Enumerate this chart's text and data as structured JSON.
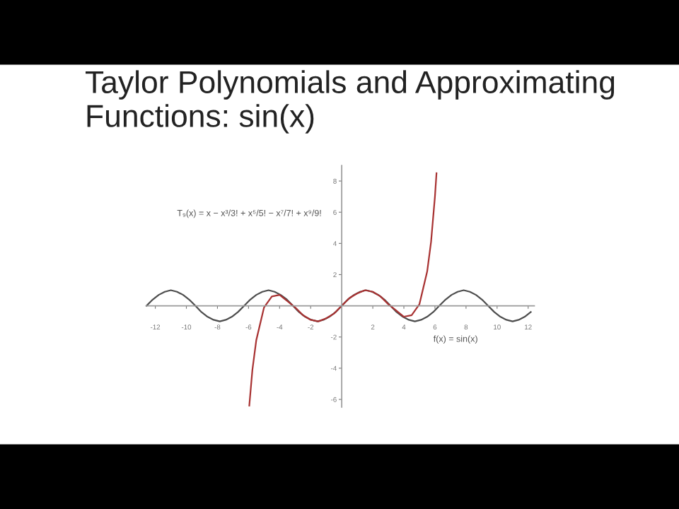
{
  "chart_data": {
    "type": "line",
    "title": "Taylor Polynomials and Approximating Functions: sin(x)",
    "series": [
      {
        "color": "#4d4d4d",
        "x": [
          -12.57,
          -12.17,
          -11.78,
          -11.39,
          -11.0,
          -10.6,
          -10.21,
          -9.82,
          -9.42,
          -9.03,
          -8.64,
          -8.25,
          -7.85,
          -7.46,
          -7.07,
          -6.68,
          -6.28,
          -5.89,
          -5.5,
          -5.11,
          -4.71,
          -4.32,
          -3.93,
          -3.53,
          -3.14,
          -2.75,
          -2.36,
          -1.96,
          -1.57,
          -1.18,
          -0.79,
          -0.39,
          0,
          0.39,
          0.79,
          1.18,
          1.57,
          1.96,
          2.36,
          2.75,
          3.14,
          3.53,
          3.93,
          4.32,
          4.71,
          5.11,
          5.5,
          5.89,
          6.28,
          6.68,
          7.07,
          7.46,
          7.85,
          8.25,
          8.64,
          9.03,
          9.42,
          9.82,
          10.21,
          10.6,
          11.0,
          11.39,
          11.78,
          12.17
        ],
        "values": [
          0,
          0.4,
          0.7,
          0.9,
          1,
          0.9,
          0.7,
          0.4,
          0,
          -0.4,
          -0.7,
          -0.9,
          -1,
          -0.9,
          -0.7,
          -0.4,
          0,
          0.4,
          0.7,
          0.9,
          1,
          0.9,
          0.7,
          0.4,
          0,
          -0.4,
          -0.7,
          -0.9,
          -1,
          -0.9,
          -0.7,
          -0.4,
          0,
          0.4,
          0.7,
          0.9,
          1,
          0.9,
          0.7,
          0.4,
          0,
          -0.4,
          -0.7,
          -0.9,
          -1,
          -0.9,
          -0.7,
          -0.4,
          0,
          0.4,
          0.7,
          0.9,
          1,
          0.9,
          0.7,
          0.4,
          0,
          -0.4,
          -0.7,
          -0.9,
          -1,
          -0.9,
          -0.7,
          -0.4
        ]
      },
      {
        "color": "#a83232",
        "x": [
          -5.95,
          -5.75,
          -5.5,
          -5,
          -4.5,
          -4,
          -3.5,
          -3,
          -2.5,
          -2,
          -1.5,
          -1,
          -0.5,
          0,
          0.5,
          1,
          1.5,
          2,
          2.5,
          3,
          3.5,
          4,
          4.5,
          5,
          5.5,
          5.75,
          6,
          6.1
        ],
        "values": [
          -6.4,
          -4.1,
          -2.2,
          -0.1,
          0.6,
          0.7,
          0.3,
          -0.1,
          -0.6,
          -0.9,
          -1.0,
          -0.8,
          -0.5,
          0,
          0.5,
          0.8,
          1.0,
          0.9,
          0.6,
          0.1,
          -0.3,
          -0.7,
          -0.6,
          0.1,
          2.2,
          4.1,
          7.0,
          8.5
        ]
      }
    ],
    "xlim": [
      -12.6,
      12.4
    ],
    "ylim": [
      -6.5,
      9
    ],
    "xticks": [
      -12,
      -10,
      -8,
      -6,
      -4,
      -2,
      2,
      4,
      6,
      8,
      10,
      12
    ],
    "yticks": [
      -6,
      -4,
      -2,
      2,
      4,
      6,
      8
    ],
    "grid": false,
    "legend": false,
    "annotations": [
      "T₉(x) = x − x³/3! + x⁵/5! − x⁷/7! + x⁹/9!",
      "f(x) = sin(x)"
    ]
  }
}
